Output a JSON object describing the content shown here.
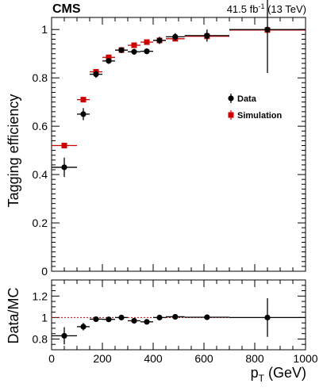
{
  "header": {
    "experiment": "CMS",
    "lumi_value": "41.5 fb",
    "lumi_sup": "-1",
    "lumi_energy": " (13 TeV)"
  },
  "chart_data": [
    {
      "type": "scatter",
      "panel": "top",
      "ylabel": "Tagging efficiency",
      "xlim": [
        0,
        1000
      ],
      "ylim": [
        0,
        1.05
      ],
      "yticks": [
        0,
        0.2,
        0.4,
        0.6,
        0.8,
        1
      ],
      "ytick_labels": [
        "0",
        "0.2",
        "0.4",
        "0.6",
        "0.8",
        "1"
      ],
      "legend_position": "right",
      "series": [
        {
          "name": "Data",
          "color": "#000000",
          "marker": "circle",
          "points": [
            {
              "x": 50,
              "y": 0.43,
              "xerr": 50,
              "yerr": 0.04
            },
            {
              "x": 125,
              "y": 0.65,
              "xerr": 25,
              "yerr": 0.025
            },
            {
              "x": 175,
              "y": 0.815,
              "xerr": 25,
              "yerr": 0.015
            },
            {
              "x": 225,
              "y": 0.87,
              "xerr": 25,
              "yerr": 0.012
            },
            {
              "x": 275,
              "y": 0.915,
              "xerr": 25,
              "yerr": 0.012
            },
            {
              "x": 325,
              "y": 0.908,
              "xerr": 25,
              "yerr": 0.012
            },
            {
              "x": 375,
              "y": 0.91,
              "xerr": 25,
              "yerr": 0.012
            },
            {
              "x": 425,
              "y": 0.955,
              "xerr": 25,
              "yerr": 0.015
            },
            {
              "x": 487,
              "y": 0.97,
              "xerr": 37,
              "yerr": 0.015
            },
            {
              "x": 612,
              "y": 0.975,
              "xerr": 88,
              "yerr": 0.025
            },
            {
              "x": 850,
              "y": 1.0,
              "xerr": 150,
              "yerr": 0.18
            }
          ]
        },
        {
          "name": "Simulation",
          "color": "#cc0000",
          "marker": "square",
          "points": [
            {
              "x": 50,
              "y": 0.52,
              "xerr": 50
            },
            {
              "x": 125,
              "y": 0.71,
              "xerr": 25
            },
            {
              "x": 175,
              "y": 0.825,
              "xerr": 25
            },
            {
              "x": 225,
              "y": 0.885,
              "xerr": 25
            },
            {
              "x": 275,
              "y": 0.915,
              "xerr": 25
            },
            {
              "x": 325,
              "y": 0.935,
              "xerr": 25
            },
            {
              "x": 375,
              "y": 0.948,
              "xerr": 25
            },
            {
              "x": 425,
              "y": 0.955,
              "xerr": 25
            },
            {
              "x": 487,
              "y": 0.962,
              "xerr": 37
            },
            {
              "x": 612,
              "y": 0.972,
              "xerr": 88
            },
            {
              "x": 850,
              "y": 0.998,
              "xerr": 150
            }
          ]
        }
      ]
    },
    {
      "type": "scatter",
      "panel": "ratio",
      "ylabel": "Data/MC",
      "xlabel": "p",
      "xlabel_sub": "T",
      "xlabel_unit": " (GeV)",
      "xlim": [
        0,
        1000
      ],
      "ylim": [
        0.7,
        1.35
      ],
      "reference_line": 1,
      "xticks": [
        0,
        200,
        400,
        600,
        800,
        1000
      ],
      "xtick_labels": [
        "0",
        "200",
        "400",
        "600",
        "800",
        "1000"
      ],
      "yticks": [
        0.8,
        1,
        1.2
      ],
      "ytick_labels": [
        "0.8",
        "1",
        "1.2"
      ],
      "series": [
        {
          "name": "Data/MC",
          "color": "#000000",
          "marker": "circle",
          "points": [
            {
              "x": 50,
              "y": 0.83,
              "xerr": 50,
              "yerr": 0.08
            },
            {
              "x": 125,
              "y": 0.915,
              "xerr": 25,
              "yerr": 0.035
            },
            {
              "x": 175,
              "y": 0.985,
              "xerr": 25,
              "yerr": 0.018
            },
            {
              "x": 225,
              "y": 0.983,
              "xerr": 25,
              "yerr": 0.015
            },
            {
              "x": 275,
              "y": 1.0,
              "xerr": 25,
              "yerr": 0.014
            },
            {
              "x": 325,
              "y": 0.97,
              "xerr": 25,
              "yerr": 0.013
            },
            {
              "x": 375,
              "y": 0.96,
              "xerr": 25,
              "yerr": 0.013
            },
            {
              "x": 425,
              "y": 1.0,
              "xerr": 25,
              "yerr": 0.015
            },
            {
              "x": 487,
              "y": 1.007,
              "xerr": 37,
              "yerr": 0.016
            },
            {
              "x": 612,
              "y": 1.003,
              "xerr": 88,
              "yerr": 0.025
            },
            {
              "x": 850,
              "y": 1.0,
              "xerr": 150,
              "yerr": 0.18
            }
          ]
        }
      ]
    }
  ]
}
